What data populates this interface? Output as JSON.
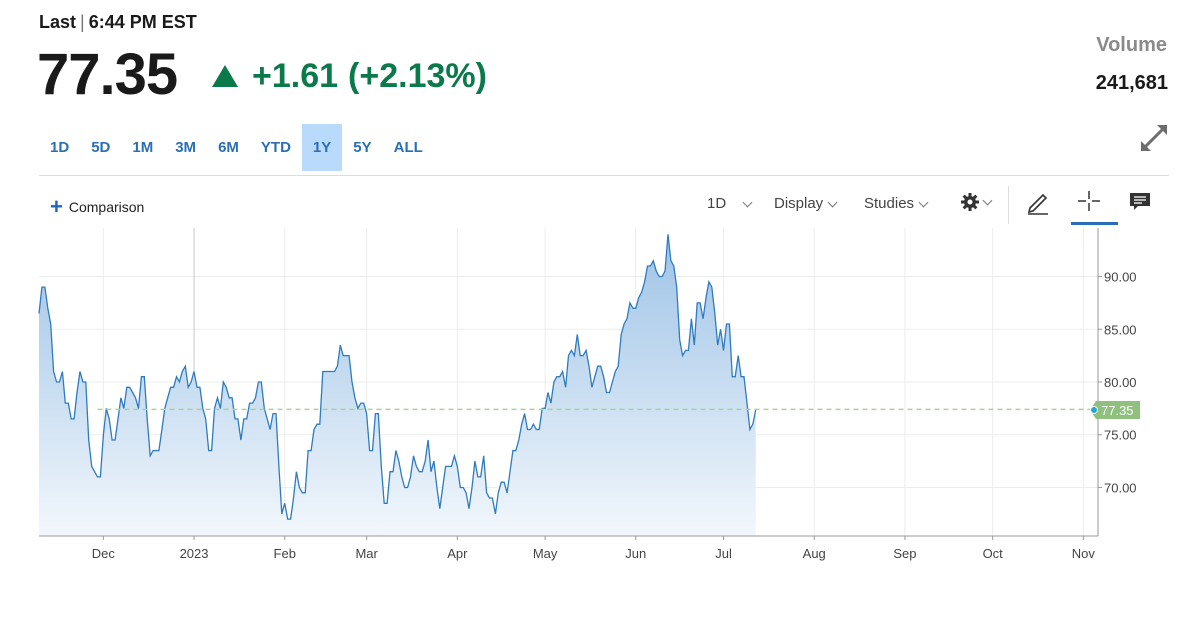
{
  "header": {
    "last_label": "Last",
    "time": "6:44 PM EST",
    "price": "77.35",
    "change": "+1.61",
    "change_pct": "(+2.13%)",
    "volume_label": "Volume",
    "volume_value": "241,681"
  },
  "ranges": [
    "1D",
    "5D",
    "1M",
    "3M",
    "6M",
    "YTD",
    "1Y",
    "5Y",
    "ALL"
  ],
  "active_range": "1Y",
  "toolbar": {
    "comparison": "Comparison",
    "interval": "1D",
    "display": "Display",
    "studies": "Studies"
  },
  "colors": {
    "line": "#2f7bbf",
    "fill_top": "#9ec3e6",
    "fill_bottom": "#f2f7fc",
    "up": "#0b7a4a",
    "marker": "#8fc07d",
    "ref_line": "#a8d49a",
    "accent": "#2a6fb5"
  },
  "chart_data": {
    "type": "area",
    "x_unit": "days since 2022-11-09",
    "x_ticks": [
      {
        "label": "Dec",
        "x": 22
      },
      {
        "label": "2023",
        "x": 53
      },
      {
        "label": "Feb",
        "x": 84
      },
      {
        "label": "Mar",
        "x": 112
      },
      {
        "label": "Apr",
        "x": 143
      },
      {
        "label": "May",
        "x": 173
      },
      {
        "label": "Jun",
        "x": 204
      },
      {
        "label": "Jul",
        "x": 234
      },
      {
        "label": "Aug",
        "x": 265
      },
      {
        "label": "Sep",
        "x": 296
      },
      {
        "label": "Oct",
        "x": 326
      },
      {
        "label": "Nov",
        "x": 357
      }
    ],
    "y_ticks": [
      "70.00",
      "75.00",
      "80.00",
      "85.00",
      "90.00"
    ],
    "ylim": [
      65.4,
      94.6
    ],
    "xlim": [
      0,
      362
    ],
    "last_value": 77.35,
    "last_label": "77.35",
    "reference_value": 77.4,
    "points": [
      [
        0,
        86.5
      ],
      [
        1,
        89.0
      ],
      [
        2,
        89.0
      ],
      [
        3,
        87.0
      ],
      [
        4,
        85.5
      ],
      [
        5,
        81.0
      ],
      [
        6,
        80.0
      ],
      [
        7,
        80.0
      ],
      [
        8,
        81.0
      ],
      [
        9,
        78.0
      ],
      [
        10,
        78.0
      ],
      [
        11,
        76.5
      ],
      [
        12,
        76.5
      ],
      [
        13,
        79.0
      ],
      [
        14,
        81.0
      ],
      [
        15,
        80.0
      ],
      [
        16,
        80.0
      ],
      [
        17,
        74.5
      ],
      [
        18,
        72.0
      ],
      [
        19,
        71.5
      ],
      [
        20,
        71.0
      ],
      [
        21,
        71.0
      ],
      [
        22,
        75.0
      ],
      [
        23,
        77.5
      ],
      [
        24,
        76.5
      ],
      [
        25,
        74.5
      ],
      [
        26,
        74.5
      ],
      [
        27,
        76.5
      ],
      [
        28,
        78.5
      ],
      [
        29,
        77.5
      ],
      [
        30,
        79.5
      ],
      [
        31,
        79.5
      ],
      [
        32,
        79.0
      ],
      [
        33,
        78.5
      ],
      [
        34,
        77.5
      ],
      [
        35,
        80.5
      ],
      [
        36,
        80.5
      ],
      [
        37,
        76.5
      ],
      [
        38,
        73.0
      ],
      [
        39,
        73.5
      ],
      [
        40,
        73.5
      ],
      [
        41,
        73.5
      ],
      [
        42,
        75.5
      ],
      [
        43,
        77.5
      ],
      [
        44,
        78.5
      ],
      [
        45,
        79.5
      ],
      [
        46,
        79.5
      ],
      [
        47,
        80.5
      ],
      [
        48,
        80.0
      ],
      [
        49,
        81.0
      ],
      [
        50,
        81.5
      ],
      [
        51,
        79.5
      ],
      [
        52,
        80.0
      ],
      [
        53,
        81.0
      ],
      [
        54,
        79.5
      ],
      [
        55,
        79.5
      ],
      [
        56,
        77.5
      ],
      [
        57,
        76.5
      ],
      [
        58,
        73.5
      ],
      [
        59,
        73.5
      ],
      [
        60,
        77.5
      ],
      [
        61,
        78.5
      ],
      [
        62,
        77.5
      ],
      [
        63,
        80.0
      ],
      [
        64,
        79.5
      ],
      [
        65,
        78.5
      ],
      [
        66,
        78.5
      ],
      [
        67,
        76.5
      ],
      [
        68,
        76.5
      ],
      [
        69,
        74.5
      ],
      [
        70,
        76.5
      ],
      [
        71,
        76.5
      ],
      [
        72,
        78.0
      ],
      [
        73,
        78.0
      ],
      [
        74,
        78.5
      ],
      [
        75,
        80.0
      ],
      [
        76,
        80.0
      ],
      [
        77,
        77.5
      ],
      [
        78,
        76.5
      ],
      [
        79,
        75.5
      ],
      [
        80,
        77.0
      ],
      [
        81,
        77.0
      ],
      [
        82,
        72.0
      ],
      [
        83,
        67.5
      ],
      [
        84,
        68.5
      ],
      [
        85,
        67.0
      ],
      [
        86,
        67.0
      ],
      [
        87,
        69.0
      ],
      [
        88,
        71.5
      ],
      [
        89,
        70.0
      ],
      [
        90,
        69.5
      ],
      [
        91,
        69.5
      ],
      [
        92,
        73.5
      ],
      [
        93,
        73.5
      ],
      [
        94,
        75.5
      ],
      [
        95,
        76.0
      ],
      [
        96,
        76.0
      ],
      [
        97,
        81.0
      ],
      [
        98,
        81.0
      ],
      [
        99,
        81.0
      ],
      [
        100,
        81.0
      ],
      [
        101,
        81.0
      ],
      [
        102,
        81.5
      ],
      [
        103,
        83.5
      ],
      [
        104,
        82.5
      ],
      [
        105,
        82.5
      ],
      [
        106,
        82.5
      ],
      [
        107,
        80.0
      ],
      [
        108,
        78.5
      ],
      [
        109,
        77.5
      ],
      [
        110,
        78.0
      ],
      [
        111,
        78.0
      ],
      [
        112,
        77.0
      ],
      [
        113,
        73.5
      ],
      [
        114,
        73.5
      ],
      [
        115,
        77.0
      ],
      [
        116,
        77.0
      ],
      [
        117,
        72.0
      ],
      [
        118,
        68.5
      ],
      [
        119,
        68.5
      ],
      [
        120,
        71.5
      ],
      [
        121,
        71.5
      ],
      [
        122,
        73.5
      ],
      [
        123,
        72.5
      ],
      [
        124,
        71.0
      ],
      [
        125,
        70.0
      ],
      [
        126,
        70.0
      ],
      [
        127,
        71.0
      ],
      [
        128,
        73.0
      ],
      [
        129,
        72.0
      ],
      [
        130,
        71.5
      ],
      [
        131,
        71.5
      ],
      [
        132,
        72.5
      ],
      [
        133,
        74.5
      ],
      [
        134,
        71.5
      ],
      [
        135,
        72.5
      ],
      [
        136,
        70.0
      ],
      [
        137,
        68.0
      ],
      [
        138,
        70.0
      ],
      [
        139,
        72.0
      ],
      [
        140,
        72.0
      ],
      [
        141,
        72.0
      ],
      [
        142,
        73.0
      ],
      [
        143,
        72.0
      ],
      [
        144,
        70.0
      ],
      [
        145,
        70.0
      ],
      [
        146,
        69.5
      ],
      [
        147,
        68.0
      ],
      [
        148,
        70.0
      ],
      [
        149,
        72.5
      ],
      [
        150,
        71.0
      ],
      [
        151,
        71.0
      ],
      [
        152,
        73.0
      ],
      [
        153,
        69.5
      ],
      [
        154,
        69.0
      ],
      [
        155,
        69.0
      ],
      [
        156,
        67.5
      ],
      [
        157,
        69.5
      ],
      [
        158,
        70.5
      ],
      [
        159,
        70.5
      ],
      [
        160,
        69.5
      ],
      [
        161,
        71.5
      ],
      [
        162,
        73.5
      ],
      [
        163,
        73.5
      ],
      [
        164,
        74.5
      ],
      [
        165,
        76.0
      ],
      [
        166,
        77.0
      ],
      [
        167,
        75.5
      ],
      [
        168,
        75.5
      ],
      [
        169,
        76.0
      ],
      [
        170,
        75.5
      ],
      [
        171,
        75.5
      ],
      [
        172,
        77.5
      ],
      [
        173,
        77.5
      ],
      [
        174,
        79.0
      ],
      [
        175,
        78.0
      ],
      [
        176,
        80.0
      ],
      [
        177,
        80.5
      ],
      [
        178,
        80.5
      ],
      [
        179,
        81.0
      ],
      [
        180,
        79.5
      ],
      [
        181,
        82.5
      ],
      [
        182,
        83.0
      ],
      [
        183,
        82.5
      ],
      [
        184,
        84.5
      ],
      [
        185,
        82.5
      ],
      [
        186,
        82.5
      ],
      [
        187,
        83.0
      ],
      [
        188,
        81.5
      ],
      [
        189,
        79.5
      ],
      [
        190,
        80.5
      ],
      [
        191,
        81.5
      ],
      [
        192,
        81.5
      ],
      [
        193,
        80.5
      ],
      [
        194,
        79.0
      ],
      [
        195,
        79.0
      ],
      [
        196,
        80.0
      ],
      [
        197,
        81.0
      ],
      [
        198,
        81.5
      ],
      [
        199,
        84.5
      ],
      [
        200,
        85.5
      ],
      [
        201,
        86.0
      ],
      [
        202,
        87.5
      ],
      [
        203,
        87.0
      ],
      [
        204,
        87.0
      ],
      [
        205,
        88.0
      ],
      [
        206,
        88.5
      ],
      [
        207,
        89.5
      ],
      [
        208,
        91.0
      ],
      [
        209,
        91.0
      ],
      [
        210,
        91.5
      ],
      [
        211,
        90.5
      ],
      [
        212,
        90.0
      ],
      [
        213,
        90.0
      ],
      [
        214,
        90.5
      ],
      [
        215,
        94.0
      ],
      [
        216,
        91.5
      ],
      [
        217,
        91.0
      ],
      [
        218,
        89.0
      ],
      [
        219,
        84.0
      ],
      [
        220,
        82.5
      ],
      [
        221,
        83.0
      ],
      [
        222,
        83.0
      ],
      [
        223,
        86.0
      ],
      [
        224,
        83.5
      ],
      [
        225,
        87.5
      ],
      [
        226,
        87.5
      ],
      [
        227,
        86.0
      ],
      [
        228,
        88.0
      ],
      [
        229,
        89.5
      ],
      [
        230,
        89.0
      ],
      [
        231,
        86.5
      ],
      [
        232,
        83.5
      ],
      [
        233,
        85.0
      ],
      [
        234,
        83.0
      ],
      [
        235,
        85.5
      ],
      [
        236,
        85.5
      ],
      [
        237,
        80.5
      ],
      [
        238,
        80.5
      ],
      [
        239,
        82.5
      ],
      [
        240,
        80.5
      ],
      [
        241,
        80.5
      ],
      [
        242,
        78.0
      ],
      [
        243,
        75.5
      ],
      [
        244,
        76.0
      ],
      [
        245,
        77.35
      ]
    ]
  }
}
